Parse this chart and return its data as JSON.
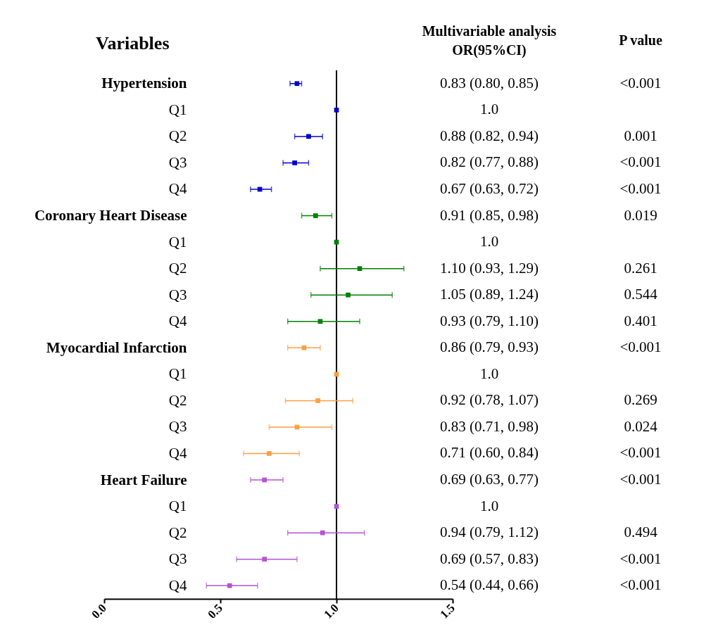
{
  "chart_data": {
    "type": "scatter",
    "orientation": "horizontal",
    "ylabel": "Variables",
    "marker": "square",
    "categories": [
      "Hypertension",
      "Q1",
      "Q2",
      "Q3",
      "Q4",
      "Coronary Heart Disease",
      "Q1",
      "Q2",
      "Q3",
      "Q4",
      "Myocardial Infarction",
      "Q1",
      "Q2",
      "Q3",
      "Q4",
      "Heart Failure",
      "Q1",
      "Q2",
      "Q3",
      "Q4"
    ],
    "xlim": [
      0,
      1.5
    ],
    "xticks": [
      {
        "value": 0,
        "label": "0.0"
      },
      {
        "value": 0.5,
        "label": "0.5"
      },
      {
        "value": 1,
        "label": "1.0"
      },
      {
        "value": 1.5,
        "label": "1.5"
      }
    ],
    "ref_lines": [
      {
        "axis": "x",
        "value": 1,
        "color": "#000000"
      }
    ],
    "series": [
      {
        "color": "#0000cc",
        "values": [
          0.83,
          1.0,
          0.88,
          0.82,
          0.67,
          null,
          null,
          null,
          null,
          null,
          null,
          null,
          null,
          null,
          null,
          null,
          null,
          null,
          null,
          null
        ],
        "errors": [
          [
            0.8,
            0.85
          ],
          null,
          [
            0.82,
            0.94
          ],
          [
            0.77,
            0.88
          ],
          [
            0.63,
            0.72
          ],
          null,
          null,
          null,
          null,
          null,
          null,
          null,
          null,
          null,
          null,
          null,
          null,
          null,
          null,
          null
        ]
      },
      {
        "color": "#008000",
        "values": [
          null,
          null,
          null,
          null,
          null,
          0.91,
          1.0,
          1.1,
          1.05,
          0.93,
          null,
          null,
          null,
          null,
          null,
          null,
          null,
          null,
          null,
          null
        ],
        "errors": [
          null,
          null,
          null,
          null,
          null,
          [
            0.85,
            0.98
          ],
          null,
          [
            0.93,
            1.29
          ],
          [
            0.89,
            1.24
          ],
          [
            0.79,
            1.1
          ],
          null,
          null,
          null,
          null,
          null,
          null,
          null,
          null,
          null,
          null
        ]
      },
      {
        "color": "#ff9f40",
        "values": [
          null,
          null,
          null,
          null,
          null,
          null,
          null,
          null,
          null,
          null,
          0.86,
          1.0,
          0.92,
          0.83,
          0.71,
          null,
          null,
          null,
          null,
          null
        ],
        "errors": [
          null,
          null,
          null,
          null,
          null,
          null,
          null,
          null,
          null,
          null,
          [
            0.79,
            0.93
          ],
          null,
          [
            0.78,
            1.07
          ],
          [
            0.71,
            0.98
          ],
          [
            0.6,
            0.84
          ],
          null,
          null,
          null,
          null,
          null
        ]
      },
      {
        "color": "#b452d8",
        "values": [
          null,
          null,
          null,
          null,
          null,
          null,
          null,
          null,
          null,
          null,
          null,
          null,
          null,
          null,
          null,
          0.69,
          1.0,
          0.94,
          0.69,
          0.54
        ],
        "errors": [
          null,
          null,
          null,
          null,
          null,
          null,
          null,
          null,
          null,
          null,
          null,
          null,
          null,
          null,
          null,
          [
            0.63,
            0.77
          ],
          null,
          [
            0.79,
            1.12
          ],
          [
            0.57,
            0.83
          ],
          [
            0.44,
            0.66
          ]
        ]
      }
    ],
    "annotations": [
      "Multivariable analysis",
      "OR(95%CI)",
      "P value",
      "0.83 (0.80, 0.85)",
      "1.0",
      "0.88 (0.82, 0.94)",
      "0.82 (0.77, 0.88)",
      "0.67 (0.63, 0.72)",
      "0.91 (0.85, 0.98)",
      "1.0",
      "1.10 (0.93, 1.29)",
      "1.05 (0.89, 1.24)",
      "0.93 (0.79, 1.10)",
      "0.86 (0.79, 0.93)",
      "1.0",
      "0.92 (0.78, 1.07)",
      "0.83 (0.71, 0.98)",
      "0.71 (0.60, 0.84)",
      "0.69 (0.63, 0.77)",
      "1.0",
      "0.94 (0.79, 1.12)",
      "0.69 (0.57, 0.83)",
      "0.54 (0.44, 0.66)",
      "<0.001",
      "0.001",
      "<0.001",
      "<0.001",
      "0.019",
      "0.261",
      "0.544",
      "0.401",
      "<0.001",
      "0.269",
      "0.024",
      "<0.001",
      "<0.001",
      "0.494",
      "<0.001",
      "<0.001"
    ]
  }
}
